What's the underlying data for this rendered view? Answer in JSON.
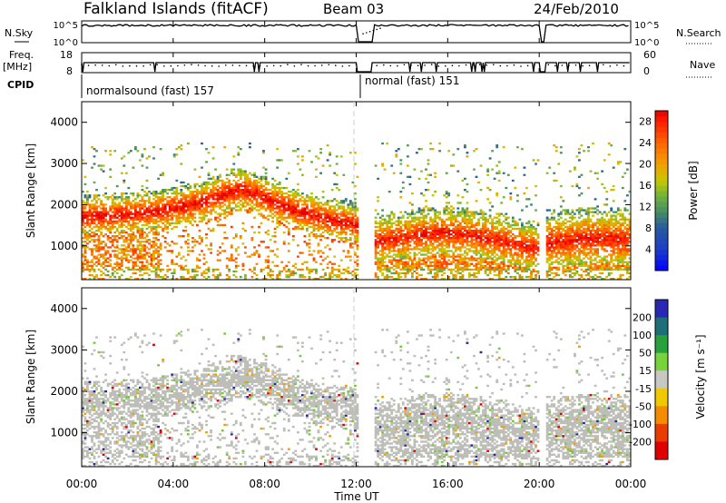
{
  "header": {
    "station": "Falkland Islands (fitACF)",
    "beam": "Beam 03",
    "date": "24/Feb/2010"
  },
  "top_panels": {
    "nsky_label": "N.Sky",
    "nsearch_label": "N.Search",
    "freq_label_1": "Freq.",
    "freq_label_2": "[MHz]",
    "nave_label": "Nave",
    "cpid_label": "CPID",
    "noise_left_ticks": [
      "10^5",
      "10^0"
    ],
    "noise_right_ticks": [
      "10^5",
      "10^0"
    ],
    "freq_left_ticks": [
      "18",
      "8"
    ],
    "freq_right_ticks": [
      "60",
      "0"
    ],
    "cpid_segments": [
      "normalsound (fast) 157",
      "normal (fast) 151"
    ]
  },
  "colorbars": {
    "power": {
      "label": "Power [dB]",
      "ticks": [
        "28",
        "24",
        "20",
        "16",
        "12",
        "8",
        "4"
      ]
    },
    "velocity": {
      "label": "Velocity [m s⁻¹]",
      "ticks": [
        "200",
        "100",
        "50",
        "15",
        "-15",
        "-50",
        "-100",
        "-200"
      ]
    }
  },
  "chart_data": [
    {
      "type": "heatmap",
      "name": "power",
      "x_ticks": [
        "00:00",
        "04:00",
        "08:00",
        "12:00",
        "16:00",
        "20:00",
        "00:00"
      ],
      "xlabel": "Time UT",
      "ylabel": "Slant Range [km]",
      "y_ticks": [
        "1000",
        "2000",
        "3000",
        "4000"
      ],
      "xlim_hours": [
        0,
        24
      ],
      "ylim_km": [
        180,
        4500
      ],
      "colorscale_db": [
        0,
        30
      ],
      "data_gaps_hours": [
        [
          12.05,
          12.7
        ],
        [
          20.05,
          20.3
        ]
      ],
      "bands": [
        {
          "t": [
            0.0,
            12.0
          ],
          "center_km": [
            1700,
            1720,
            1750,
            1800,
            1900,
            2000,
            2200,
            2350,
            2150,
            1900,
            1750,
            1600,
            1500
          ],
          "width_km": 400,
          "mean_db": 26
        },
        {
          "t": [
            12.7,
            20.0
          ],
          "center_km": [
            1100,
            1150,
            1250,
            1300,
            1250,
            1150,
            1000,
            900
          ],
          "width_km": 500,
          "mean_db": 25
        },
        {
          "t": [
            20.3,
            24.0
          ],
          "center_km": [
            1050,
            1100,
            1150,
            1150,
            1100
          ],
          "width_km": 600,
          "mean_db": 25
        }
      ]
    },
    {
      "type": "heatmap",
      "name": "velocity",
      "x_ticks": [
        "00:00",
        "04:00",
        "08:00",
        "12:00",
        "16:00",
        "20:00",
        "00:00"
      ],
      "xlabel": "Time UT",
      "ylabel": "Slant Range [km]",
      "y_ticks": [
        "1000",
        "2000",
        "3000",
        "4000"
      ],
      "xlim_hours": [
        0,
        24
      ],
      "ylim_km": [
        180,
        4500
      ],
      "colorscale_ms": [
        -200,
        200
      ],
      "dominant_velocity_ms": 0
    }
  ]
}
